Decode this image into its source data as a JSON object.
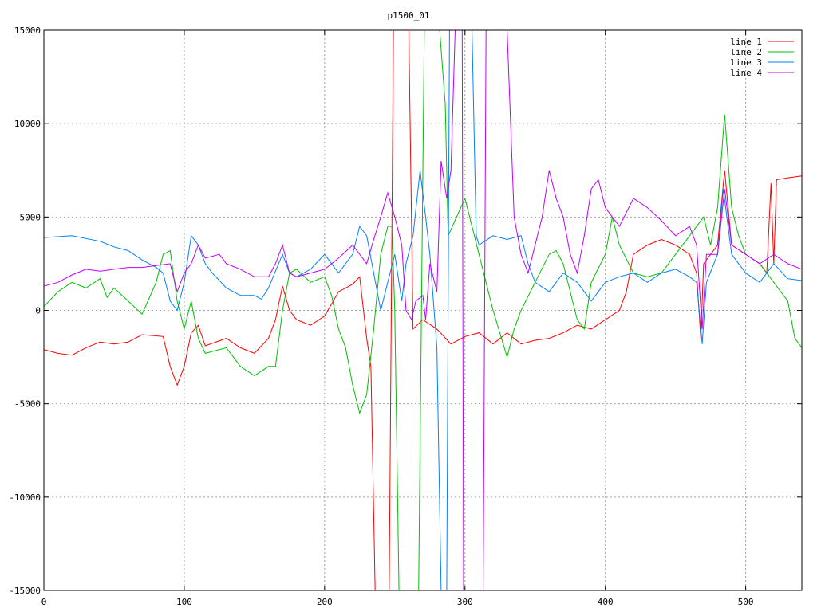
{
  "chart_data": {
    "type": "line",
    "title": "p1500_01",
    "xlabel": "",
    "ylabel": "",
    "xlim": [
      0,
      540
    ],
    "ylim": [
      -15000,
      15000
    ],
    "xticks": [
      0,
      100,
      200,
      300,
      400,
      500
    ],
    "yticks": [
      -15000,
      -10000,
      -5000,
      0,
      5000,
      10000,
      15000
    ],
    "grid": true,
    "legend_placement": "top-right",
    "series": [
      {
        "name": "line 1",
        "color": "#ff0000",
        "points": [
          [
            0,
            -2100
          ],
          [
            10,
            -2300
          ],
          [
            20,
            -2400
          ],
          [
            30,
            -2000
          ],
          [
            40,
            -1700
          ],
          [
            50,
            -1800
          ],
          [
            60,
            -1700
          ],
          [
            70,
            -1300
          ],
          [
            85,
            -1400
          ],
          [
            90,
            -3000
          ],
          [
            95,
            -4000
          ],
          [
            100,
            -3000
          ],
          [
            105,
            -1200
          ],
          [
            110,
            -800
          ],
          [
            115,
            -1900
          ],
          [
            130,
            -1500
          ],
          [
            140,
            -2000
          ],
          [
            150,
            -2300
          ],
          [
            160,
            -1500
          ],
          [
            165,
            -500
          ],
          [
            170,
            1300
          ],
          [
            175,
            0
          ],
          [
            180,
            -500
          ],
          [
            190,
            -800
          ],
          [
            200,
            -300
          ],
          [
            210,
            1000
          ],
          [
            220,
            1400
          ],
          [
            225,
            1800
          ],
          [
            230,
            -1500
          ],
          [
            233,
            -3000
          ],
          [
            236,
            -15000
          ],
          [
            246,
            -15000
          ],
          [
            249,
            15000
          ],
          [
            260,
            15000
          ],
          [
            263,
            -1000
          ],
          [
            270,
            -500
          ],
          [
            280,
            -1000
          ],
          [
            290,
            -1800
          ],
          [
            300,
            -1400
          ],
          [
            310,
            -1200
          ],
          [
            320,
            -1800
          ],
          [
            330,
            -1200
          ],
          [
            340,
            -1800
          ],
          [
            350,
            -1600
          ],
          [
            360,
            -1500
          ],
          [
            370,
            -1200
          ],
          [
            380,
            -800
          ],
          [
            390,
            -1000
          ],
          [
            400,
            -500
          ],
          [
            410,
            0
          ],
          [
            415,
            1000
          ],
          [
            420,
            3000
          ],
          [
            430,
            3500
          ],
          [
            440,
            3800
          ],
          [
            450,
            3500
          ],
          [
            460,
            3000
          ],
          [
            465,
            2000
          ],
          [
            468,
            -1500
          ],
          [
            470,
            2500
          ],
          [
            480,
            3500
          ],
          [
            485,
            7500
          ],
          [
            490,
            3500
          ],
          [
            500,
            3000
          ],
          [
            510,
            2500
          ],
          [
            515,
            2000
          ],
          [
            518,
            6800
          ],
          [
            520,
            2500
          ],
          [
            522,
            7000
          ],
          [
            530,
            7100
          ],
          [
            540,
            7200
          ]
        ]
      },
      {
        "name": "line 2",
        "color": "#00c000",
        "points": [
          [
            0,
            200
          ],
          [
            10,
            1000
          ],
          [
            20,
            1500
          ],
          [
            30,
            1200
          ],
          [
            40,
            1700
          ],
          [
            45,
            700
          ],
          [
            50,
            1200
          ],
          [
            60,
            500
          ],
          [
            70,
            -200
          ],
          [
            80,
            1500
          ],
          [
            85,
            3000
          ],
          [
            90,
            3200
          ],
          [
            95,
            500
          ],
          [
            100,
            -1000
          ],
          [
            105,
            500
          ],
          [
            110,
            -1500
          ],
          [
            115,
            -2300
          ],
          [
            130,
            -2000
          ],
          [
            140,
            -3000
          ],
          [
            150,
            -3500
          ],
          [
            160,
            -3000
          ],
          [
            165,
            -3000
          ],
          [
            170,
            0
          ],
          [
            175,
            2000
          ],
          [
            180,
            2200
          ],
          [
            190,
            1500
          ],
          [
            200,
            1800
          ],
          [
            205,
            800
          ],
          [
            210,
            -1000
          ],
          [
            215,
            -2000
          ],
          [
            220,
            -4000
          ],
          [
            225,
            -5500
          ],
          [
            230,
            -4500
          ],
          [
            235,
            -1000
          ],
          [
            240,
            3000
          ],
          [
            245,
            4500
          ],
          [
            248,
            4500
          ],
          [
            250,
            0
          ],
          [
            253,
            -15000
          ],
          [
            267,
            -15000
          ],
          [
            271,
            15000
          ],
          [
            282,
            15000
          ],
          [
            286,
            11000
          ],
          [
            288,
            4000
          ],
          [
            300,
            6000
          ],
          [
            310,
            3000
          ],
          [
            320,
            0
          ],
          [
            330,
            -2500
          ],
          [
            335,
            -1000
          ],
          [
            340,
            0
          ],
          [
            350,
            1500
          ],
          [
            360,
            3000
          ],
          [
            365,
            3200
          ],
          [
            370,
            2500
          ],
          [
            380,
            -500
          ],
          [
            385,
            -1000
          ],
          [
            390,
            1500
          ],
          [
            400,
            3000
          ],
          [
            405,
            5000
          ],
          [
            410,
            3500
          ],
          [
            420,
            2000
          ],
          [
            430,
            1800
          ],
          [
            440,
            2000
          ],
          [
            450,
            3000
          ],
          [
            460,
            4000
          ],
          [
            470,
            5000
          ],
          [
            475,
            3500
          ],
          [
            480,
            5500
          ],
          [
            485,
            10500
          ],
          [
            490,
            5500
          ],
          [
            495,
            4000
          ],
          [
            500,
            3000
          ],
          [
            510,
            2500
          ],
          [
            520,
            1500
          ],
          [
            530,
            500
          ],
          [
            535,
            -1500
          ],
          [
            540,
            -2000
          ]
        ]
      },
      {
        "name": "line 3",
        "color": "#0080ff",
        "points": [
          [
            0,
            3900
          ],
          [
            20,
            4000
          ],
          [
            40,
            3700
          ],
          [
            50,
            3400
          ],
          [
            60,
            3200
          ],
          [
            70,
            2700
          ],
          [
            80,
            2300
          ],
          [
            85,
            2000
          ],
          [
            90,
            500
          ],
          [
            95,
            0
          ],
          [
            100,
            1500
          ],
          [
            105,
            4000
          ],
          [
            110,
            3500
          ],
          [
            115,
            2500
          ],
          [
            120,
            2000
          ],
          [
            130,
            1200
          ],
          [
            135,
            1000
          ],
          [
            140,
            800
          ],
          [
            150,
            800
          ],
          [
            155,
            600
          ],
          [
            160,
            1200
          ],
          [
            170,
            3000
          ],
          [
            175,
            2000
          ],
          [
            180,
            1800
          ],
          [
            190,
            2200
          ],
          [
            200,
            3000
          ],
          [
            205,
            2500
          ],
          [
            210,
            2000
          ],
          [
            220,
            3000
          ],
          [
            225,
            4500
          ],
          [
            230,
            4000
          ],
          [
            235,
            2000
          ],
          [
            240,
            0
          ],
          [
            245,
            1500
          ],
          [
            250,
            3000
          ],
          [
            255,
            500
          ],
          [
            258,
            2500
          ],
          [
            263,
            4000
          ],
          [
            268,
            7500
          ],
          [
            272,
            5000
          ],
          [
            275,
            3000
          ],
          [
            280,
            -2000
          ],
          [
            283,
            -15000
          ],
          [
            287,
            -15000
          ],
          [
            289,
            15000
          ],
          [
            305,
            15000
          ],
          [
            308,
            4000
          ],
          [
            310,
            3500
          ],
          [
            320,
            4000
          ],
          [
            330,
            3800
          ],
          [
            340,
            4000
          ],
          [
            345,
            2500
          ],
          [
            350,
            1500
          ],
          [
            360,
            1000
          ],
          [
            370,
            2000
          ],
          [
            380,
            1500
          ],
          [
            390,
            500
          ],
          [
            395,
            1000
          ],
          [
            400,
            1500
          ],
          [
            410,
            1800
          ],
          [
            420,
            2000
          ],
          [
            430,
            1500
          ],
          [
            440,
            2000
          ],
          [
            450,
            2200
          ],
          [
            460,
            1800
          ],
          [
            465,
            1500
          ],
          [
            469,
            -1800
          ],
          [
            472,
            1500
          ],
          [
            480,
            3000
          ],
          [
            484,
            6500
          ],
          [
            490,
            3000
          ],
          [
            500,
            2000
          ],
          [
            510,
            1500
          ],
          [
            520,
            2500
          ],
          [
            530,
            1700
          ],
          [
            540,
            1600
          ]
        ]
      },
      {
        "name": "line 4",
        "color": "#c000ff",
        "points": [
          [
            0,
            1300
          ],
          [
            10,
            1500
          ],
          [
            20,
            1900
          ],
          [
            30,
            2200
          ],
          [
            40,
            2100
          ],
          [
            50,
            2200
          ],
          [
            60,
            2300
          ],
          [
            70,
            2300
          ],
          [
            80,
            2400
          ],
          [
            90,
            2500
          ],
          [
            95,
            1000
          ],
          [
            100,
            2000
          ],
          [
            105,
            2500
          ],
          [
            110,
            3500
          ],
          [
            115,
            2800
          ],
          [
            125,
            3000
          ],
          [
            130,
            2500
          ],
          [
            140,
            2200
          ],
          [
            150,
            1800
          ],
          [
            160,
            1800
          ],
          [
            165,
            2500
          ],
          [
            170,
            3500
          ],
          [
            175,
            2000
          ],
          [
            180,
            1800
          ],
          [
            190,
            2000
          ],
          [
            200,
            2200
          ],
          [
            210,
            2800
          ],
          [
            220,
            3500
          ],
          [
            225,
            3000
          ],
          [
            230,
            2500
          ],
          [
            235,
            3800
          ],
          [
            240,
            5000
          ],
          [
            245,
            6300
          ],
          [
            250,
            5000
          ],
          [
            255,
            3500
          ],
          [
            258,
            0
          ],
          [
            262,
            -500
          ],
          [
            265,
            500
          ],
          [
            270,
            800
          ],
          [
            272,
            -500
          ],
          [
            275,
            2500
          ],
          [
            280,
            1000
          ],
          [
            283,
            8000
          ],
          [
            287,
            6000
          ],
          [
            290,
            7500
          ],
          [
            293,
            15000
          ],
          [
            298,
            15000
          ],
          [
            299,
            -15000
          ],
          [
            313,
            -15000
          ],
          [
            315,
            15000
          ],
          [
            330,
            15000
          ],
          [
            335,
            5000
          ],
          [
            340,
            3000
          ],
          [
            345,
            2000
          ],
          [
            350,
            3500
          ],
          [
            355,
            5000
          ],
          [
            360,
            7500
          ],
          [
            365,
            6000
          ],
          [
            370,
            5000
          ],
          [
            375,
            3000
          ],
          [
            380,
            2000
          ],
          [
            385,
            4000
          ],
          [
            390,
            6500
          ],
          [
            395,
            7000
          ],
          [
            400,
            5500
          ],
          [
            410,
            4500
          ],
          [
            420,
            6000
          ],
          [
            430,
            5500
          ],
          [
            440,
            4800
          ],
          [
            450,
            4000
          ],
          [
            460,
            4500
          ],
          [
            465,
            3500
          ],
          [
            469,
            -1000
          ],
          [
            472,
            3000
          ],
          [
            480,
            3000
          ],
          [
            485,
            6500
          ],
          [
            490,
            3500
          ],
          [
            500,
            3000
          ],
          [
            510,
            2500
          ],
          [
            520,
            3000
          ],
          [
            530,
            2500
          ],
          [
            540,
            2200
          ]
        ]
      }
    ]
  }
}
